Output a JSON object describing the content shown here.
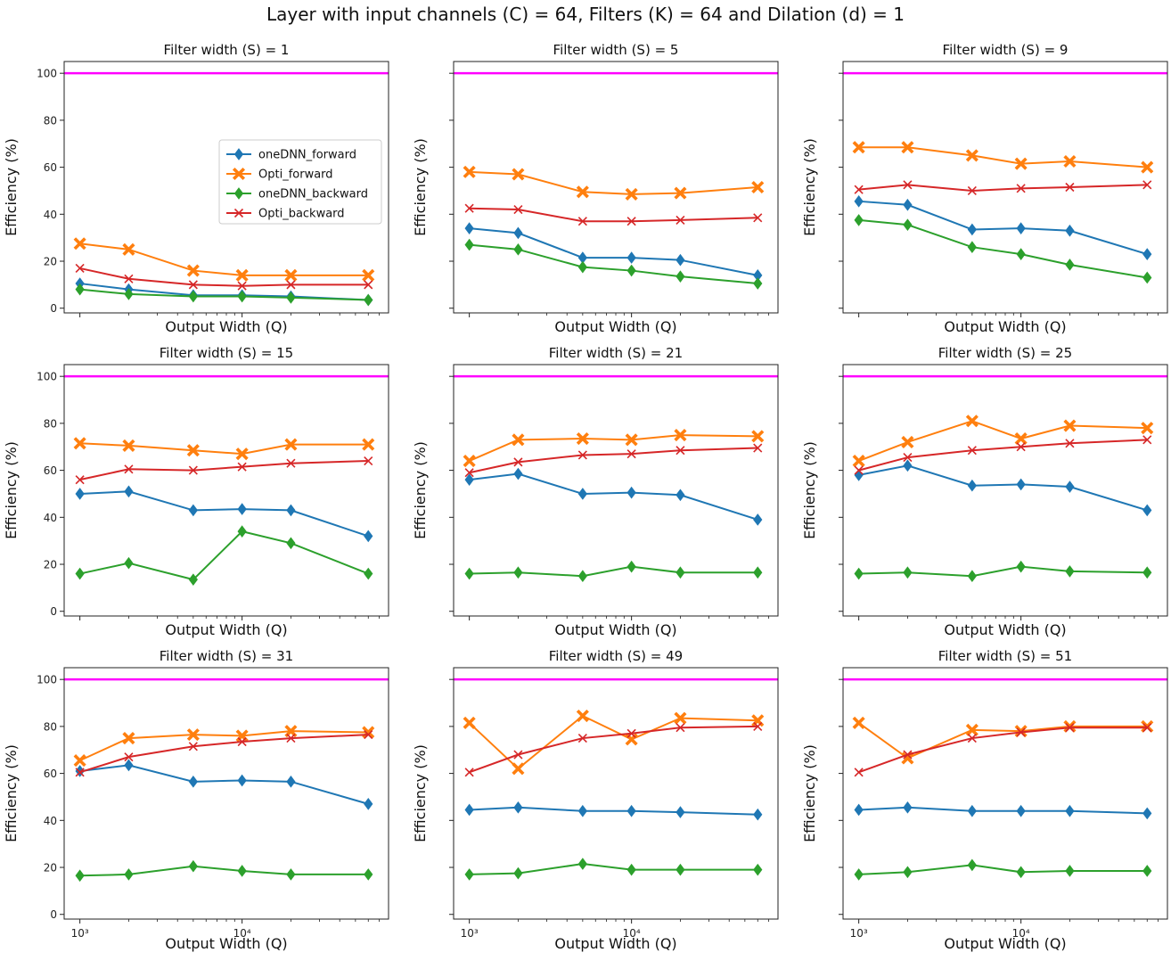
{
  "figure": {
    "title": "Layer with input channels (C) = 64, Filters (K) = 64 and Dilation (d) = 1"
  },
  "colors": {
    "oneDNN_forward": "#1f77b4",
    "Opti_forward": "#ff7f0e",
    "oneDNN_backward": "#2ca02c",
    "Opti_backward": "#d62728",
    "reference_line": "#ff00ff"
  },
  "chart_data": [
    {
      "type": "line",
      "title": "Filter width (S) = 1",
      "xlabel": "Output Width (Q)",
      "ylabel": "Efficiency (%)",
      "xscale": "log",
      "xlim": [
        800,
        80000
      ],
      "ylim": [
        -2,
        105
      ],
      "x": [
        1000,
        2000,
        5000,
        10000,
        20000,
        60000
      ],
      "yticks": [
        0,
        20,
        40,
        60,
        80,
        100
      ],
      "xticks": [
        1000,
        10000
      ],
      "xtick_labels": [
        "10³",
        "10⁴"
      ],
      "show_ytick_labels": true,
      "show_xtick_labels": false,
      "legend": {
        "location": "center-right",
        "entries": [
          "oneDNN_forward",
          "Opti_forward",
          "oneDNN_backward",
          "Opti_backward"
        ]
      },
      "hline": 100,
      "series": [
        {
          "name": "oneDNN_forward",
          "marker": "diamond",
          "values": [
            10.5,
            8,
            5.5,
            5.5,
            5,
            3.5
          ]
        },
        {
          "name": "Opti_forward",
          "marker": "x-filled",
          "values": [
            27.5,
            25,
            16,
            14,
            14,
            14
          ]
        },
        {
          "name": "oneDNN_backward",
          "marker": "diamond",
          "values": [
            8,
            6,
            5,
            5,
            4.5,
            3.5
          ]
        },
        {
          "name": "Opti_backward",
          "marker": "x",
          "values": [
            17,
            12.5,
            10,
            9.5,
            10,
            10
          ]
        }
      ]
    },
    {
      "type": "line",
      "title": "Filter width (S) = 5",
      "xlabel": "Output Width (Q)",
      "ylabel": "Efficiency (%)",
      "xscale": "log",
      "xlim": [
        800,
        80000
      ],
      "ylim": [
        -2,
        105
      ],
      "x": [
        1000,
        2000,
        5000,
        10000,
        20000,
        60000
      ],
      "yticks": [
        0,
        20,
        40,
        60,
        80,
        100
      ],
      "xticks": [
        1000,
        10000
      ],
      "xtick_labels": [
        "10³",
        "10⁴"
      ],
      "show_ytick_labels": false,
      "show_xtick_labels": false,
      "hline": 100,
      "series": [
        {
          "name": "oneDNN_forward",
          "marker": "diamond",
          "values": [
            34,
            32,
            21.5,
            21.5,
            20.5,
            14
          ]
        },
        {
          "name": "Opti_forward",
          "marker": "x-filled",
          "values": [
            58,
            57,
            49.5,
            48.5,
            49,
            51.5
          ]
        },
        {
          "name": "oneDNN_backward",
          "marker": "diamond",
          "values": [
            27,
            25,
            17.5,
            16,
            13.5,
            10.5
          ]
        },
        {
          "name": "Opti_backward",
          "marker": "x",
          "values": [
            42.5,
            42,
            37,
            37,
            37.5,
            38.5
          ]
        }
      ]
    },
    {
      "type": "line",
      "title": "Filter width (S) = 9",
      "xlabel": "Output Width (Q)",
      "ylabel": "Efficiency (%)",
      "xscale": "log",
      "xlim": [
        800,
        80000
      ],
      "ylim": [
        -2,
        105
      ],
      "x": [
        1000,
        2000,
        5000,
        10000,
        20000,
        60000
      ],
      "yticks": [
        0,
        20,
        40,
        60,
        80,
        100
      ],
      "xticks": [
        1000,
        10000
      ],
      "xtick_labels": [
        "10³",
        "10⁴"
      ],
      "show_ytick_labels": false,
      "show_xtick_labels": false,
      "hline": 100,
      "series": [
        {
          "name": "oneDNN_forward",
          "marker": "diamond",
          "values": [
            45.5,
            44,
            33.5,
            34,
            33,
            23
          ]
        },
        {
          "name": "Opti_forward",
          "marker": "x-filled",
          "values": [
            68.5,
            68.5,
            65,
            61.5,
            62.5,
            60
          ]
        },
        {
          "name": "oneDNN_backward",
          "marker": "diamond",
          "values": [
            37.5,
            35.5,
            26,
            23,
            18.5,
            13
          ]
        },
        {
          "name": "Opti_backward",
          "marker": "x",
          "values": [
            50.5,
            52.5,
            50,
            51,
            51.5,
            52.5
          ]
        }
      ]
    },
    {
      "type": "line",
      "title": "Filter width (S) = 15",
      "xlabel": "Output Width (Q)",
      "ylabel": "Efficiency (%)",
      "xscale": "log",
      "xlim": [
        800,
        80000
      ],
      "ylim": [
        -2,
        105
      ],
      "x": [
        1000,
        2000,
        5000,
        10000,
        20000,
        60000
      ],
      "yticks": [
        0,
        20,
        40,
        60,
        80,
        100
      ],
      "xticks": [
        1000,
        10000
      ],
      "xtick_labels": [
        "10³",
        "10⁴"
      ],
      "show_ytick_labels": true,
      "show_xtick_labels": false,
      "hline": 100,
      "series": [
        {
          "name": "oneDNN_forward",
          "marker": "diamond",
          "values": [
            50,
            51,
            43,
            43.5,
            43,
            32
          ]
        },
        {
          "name": "Opti_forward",
          "marker": "x-filled",
          "values": [
            71.5,
            70.5,
            68.5,
            67,
            71,
            71
          ]
        },
        {
          "name": "oneDNN_backward",
          "marker": "diamond",
          "values": [
            16,
            20.5,
            13.5,
            34,
            29,
            16
          ]
        },
        {
          "name": "Opti_backward",
          "marker": "x",
          "values": [
            56,
            60.5,
            60,
            61.5,
            63,
            64
          ]
        }
      ]
    },
    {
      "type": "line",
      "title": "Filter width (S) = 21",
      "xlabel": "Output Width (Q)",
      "ylabel": "Efficiency (%)",
      "xscale": "log",
      "xlim": [
        800,
        80000
      ],
      "ylim": [
        -2,
        105
      ],
      "x": [
        1000,
        2000,
        5000,
        10000,
        20000,
        60000
      ],
      "yticks": [
        0,
        20,
        40,
        60,
        80,
        100
      ],
      "xticks": [
        1000,
        10000
      ],
      "xtick_labels": [
        "10³",
        "10⁴"
      ],
      "show_ytick_labels": false,
      "show_xtick_labels": false,
      "hline": 100,
      "series": [
        {
          "name": "oneDNN_forward",
          "marker": "diamond",
          "values": [
            56,
            58.5,
            50,
            50.5,
            49.5,
            39
          ]
        },
        {
          "name": "Opti_forward",
          "marker": "x-filled",
          "values": [
            64,
            73,
            73.5,
            73,
            75,
            74.5
          ]
        },
        {
          "name": "oneDNN_backward",
          "marker": "diamond",
          "values": [
            16,
            16.5,
            15,
            19,
            16.5,
            16.5
          ]
        },
        {
          "name": "Opti_backward",
          "marker": "x",
          "values": [
            59,
            63.5,
            66.5,
            67,
            68.5,
            69.5
          ]
        }
      ]
    },
    {
      "type": "line",
      "title": "Filter width (S) = 25",
      "xlabel": "Output Width (Q)",
      "ylabel": "Efficiency (%)",
      "xscale": "log",
      "xlim": [
        800,
        80000
      ],
      "ylim": [
        -2,
        105
      ],
      "x": [
        1000,
        2000,
        5000,
        10000,
        20000,
        60000
      ],
      "yticks": [
        0,
        20,
        40,
        60,
        80,
        100
      ],
      "xticks": [
        1000,
        10000
      ],
      "xtick_labels": [
        "10³",
        "10⁴"
      ],
      "show_ytick_labels": false,
      "show_xtick_labels": false,
      "hline": 100,
      "series": [
        {
          "name": "oneDNN_forward",
          "marker": "diamond",
          "values": [
            58,
            62,
            53.5,
            54,
            53,
            43
          ]
        },
        {
          "name": "Opti_forward",
          "marker": "x-filled",
          "values": [
            64,
            72,
            81,
            73.5,
            79,
            78
          ]
        },
        {
          "name": "oneDNN_backward",
          "marker": "diamond",
          "values": [
            16,
            16.5,
            15,
            19,
            17,
            16.5
          ]
        },
        {
          "name": "Opti_backward",
          "marker": "x",
          "values": [
            60,
            65.5,
            68.5,
            70,
            71.5,
            73
          ]
        }
      ]
    },
    {
      "type": "line",
      "title": "Filter width (S) = 31",
      "xlabel": "Output Width (Q)",
      "ylabel": "Efficiency (%)",
      "xscale": "log",
      "xlim": [
        800,
        80000
      ],
      "ylim": [
        -2,
        105
      ],
      "x": [
        1000,
        2000,
        5000,
        10000,
        20000,
        60000
      ],
      "yticks": [
        0,
        20,
        40,
        60,
        80,
        100
      ],
      "xticks": [
        1000,
        10000
      ],
      "xtick_labels": [
        "10³",
        "10⁴"
      ],
      "show_ytick_labels": true,
      "show_xtick_labels": true,
      "hline": 100,
      "series": [
        {
          "name": "oneDNN_forward",
          "marker": "diamond",
          "values": [
            61,
            63.5,
            56.5,
            57,
            56.5,
            47
          ]
        },
        {
          "name": "Opti_forward",
          "marker": "x-filled",
          "values": [
            65.5,
            75,
            76.5,
            76,
            78,
            77.5
          ]
        },
        {
          "name": "oneDNN_backward",
          "marker": "diamond",
          "values": [
            16.5,
            17,
            20.5,
            18.5,
            17,
            17
          ]
        },
        {
          "name": "Opti_backward",
          "marker": "x",
          "values": [
            60.5,
            67,
            71.5,
            73.5,
            75,
            76.5
          ]
        }
      ]
    },
    {
      "type": "line",
      "title": "Filter width (S) = 49",
      "xlabel": "Output Width (Q)",
      "ylabel": "Efficiency (%)",
      "xscale": "log",
      "xlim": [
        800,
        80000
      ],
      "ylim": [
        -2,
        105
      ],
      "x": [
        1000,
        2000,
        5000,
        10000,
        20000,
        60000
      ],
      "yticks": [
        0,
        20,
        40,
        60,
        80,
        100
      ],
      "xticks": [
        1000,
        10000
      ],
      "xtick_labels": [
        "10³",
        "10⁴"
      ],
      "show_ytick_labels": false,
      "show_xtick_labels": true,
      "hline": 100,
      "series": [
        {
          "name": "oneDNN_forward",
          "marker": "diamond",
          "values": [
            44.5,
            45.5,
            44,
            44,
            43.5,
            42.5
          ]
        },
        {
          "name": "Opti_forward",
          "marker": "x-filled",
          "values": [
            81.5,
            62,
            84.5,
            74.5,
            83.5,
            82.5
          ]
        },
        {
          "name": "oneDNN_backward",
          "marker": "diamond",
          "values": [
            17,
            17.5,
            21.5,
            19,
            19,
            19
          ]
        },
        {
          "name": "Opti_backward",
          "marker": "x",
          "values": [
            60.5,
            68,
            75,
            77,
            79.5,
            80
          ]
        }
      ]
    },
    {
      "type": "line",
      "title": "Filter width (S) = 51",
      "xlabel": "Output Width (Q)",
      "ylabel": "Efficiency (%)",
      "xscale": "log",
      "xlim": [
        800,
        80000
      ],
      "ylim": [
        -2,
        105
      ],
      "x": [
        1000,
        2000,
        5000,
        10000,
        20000,
        60000
      ],
      "yticks": [
        0,
        20,
        40,
        60,
        80,
        100
      ],
      "xticks": [
        1000,
        10000
      ],
      "xtick_labels": [
        "10³",
        "10⁴"
      ],
      "show_ytick_labels": false,
      "show_xtick_labels": true,
      "hline": 100,
      "series": [
        {
          "name": "oneDNN_forward",
          "marker": "diamond",
          "values": [
            44.5,
            45.5,
            44,
            44,
            44,
            43
          ]
        },
        {
          "name": "Opti_forward",
          "marker": "x-filled",
          "values": [
            81.5,
            66.5,
            78.5,
            78,
            80,
            80
          ]
        },
        {
          "name": "oneDNN_backward",
          "marker": "diamond",
          "values": [
            17,
            18,
            21,
            18,
            18.5,
            18.5
          ]
        },
        {
          "name": "Opti_backward",
          "marker": "x",
          "values": [
            60.5,
            68,
            75,
            77.5,
            79.5,
            79.5
          ]
        }
      ]
    }
  ]
}
